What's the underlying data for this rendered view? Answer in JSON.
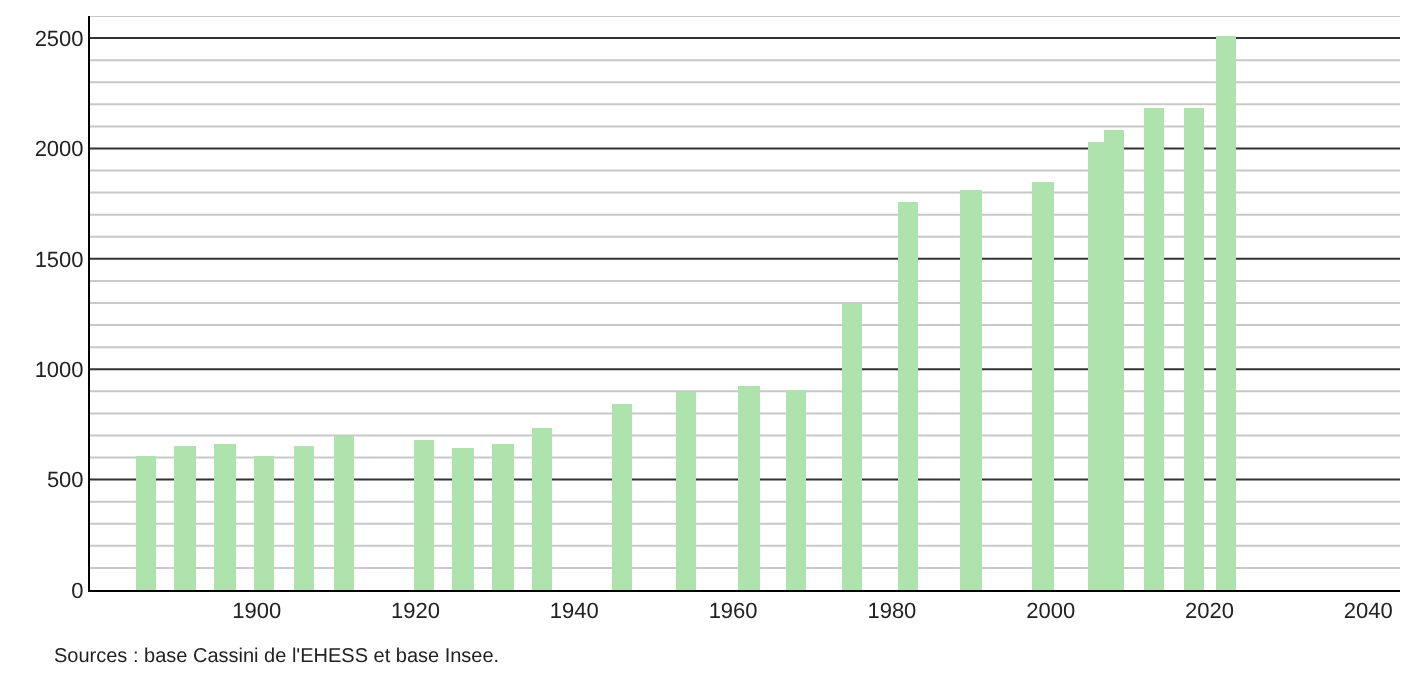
{
  "chart_data": {
    "type": "bar",
    "color": "#aee3ae",
    "x": [
      1886,
      1891,
      1896,
      1901,
      1906,
      1911,
      1921,
      1926,
      1931,
      1936,
      1946,
      1954,
      1962,
      1968,
      1975,
      1982,
      1990,
      1999,
      2006,
      2008,
      2013,
      2018,
      2022
    ],
    "values": [
      610,
      650,
      660,
      610,
      650,
      700,
      680,
      640,
      660,
      730,
      840,
      900,
      920,
      910,
      1300,
      1760,
      1810,
      1850,
      2030,
      2080,
      2180,
      2180,
      2510
    ],
    "xlim": [
      1879,
      2044
    ],
    "xticks": [
      1900,
      1920,
      1940,
      1960,
      1980,
      2000,
      2020,
      2040
    ],
    "ylim": [
      0,
      2600
    ],
    "yticks": [
      0,
      {
        "value": 100,
        "label": null
      },
      {
        "value": 200,
        "label": null
      },
      {
        "value": 300,
        "label": null
      },
      {
        "value": 400,
        "label": null
      },
      500,
      {
        "value": 600,
        "label": null
      },
      {
        "value": 700,
        "label": null
      },
      {
        "value": 800,
        "label": null
      },
      {
        "value": 900,
        "label": null
      },
      1000,
      {
        "value": 1100,
        "label": null
      },
      {
        "value": 1200,
        "label": null
      },
      {
        "value": 1300,
        "label": null
      },
      {
        "value": 1400,
        "label": null
      },
      1500,
      {
        "value": 1600,
        "label": null
      },
      {
        "value": 1700,
        "label": null
      },
      {
        "value": 1800,
        "label": null
      },
      {
        "value": 1900,
        "label": null
      },
      2000,
      {
        "value": 2100,
        "label": null
      },
      {
        "value": 2200,
        "label": null
      },
      {
        "value": 2300,
        "label": null
      },
      {
        "value": 2400,
        "label": null
      },
      2500,
      {
        "value": 2600,
        "label": null
      }
    ],
    "grid": "y",
    "legend": false,
    "annotations": [
      "Sources : base Cassini de l'EHESS et base Insee."
    ]
  }
}
